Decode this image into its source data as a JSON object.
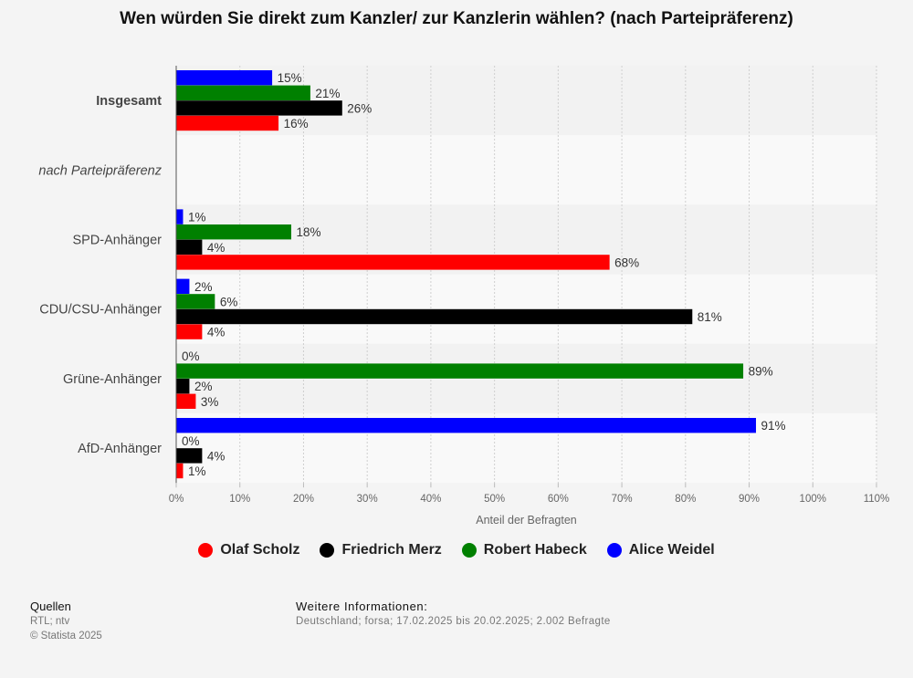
{
  "chart_data": {
    "type": "bar",
    "orientation": "horizontal",
    "title": "Wen würden Sie direkt zum Kanzler/ zur Kanzlerin wählen? (nach Parteipräferenz)",
    "xlabel": "Anteil der Befragten",
    "xlim": [
      0,
      110
    ],
    "xticks": [
      "0%",
      "10%",
      "20%",
      "30%",
      "40%",
      "50%",
      "60%",
      "70%",
      "80%",
      "90%",
      "100%",
      "110%"
    ],
    "grid": true,
    "legend_position": "bottom",
    "categories": [
      {
        "label": "Insgesamt",
        "style": "bold"
      },
      {
        "label": "nach Parteipräferenz",
        "style": "italic"
      },
      {
        "label": "SPD-Anhänger",
        "style": "normal"
      },
      {
        "label": "CDU/CSU-Anhänger",
        "style": "normal"
      },
      {
        "label": "Grüne-Anhänger",
        "style": "normal"
      },
      {
        "label": "AfD-Anhänger",
        "style": "normal"
      }
    ],
    "series": [
      {
        "name": "Alice Weidel",
        "color": "#0000ff",
        "values": [
          15,
          null,
          1,
          2,
          0,
          91
        ],
        "labels": [
          "15%",
          "",
          "1%",
          "2%",
          "0%",
          "91%"
        ]
      },
      {
        "name": "Robert Habeck",
        "color": "#008000",
        "values": [
          21,
          null,
          18,
          6,
          89,
          0
        ],
        "labels": [
          "21%",
          "",
          "18%",
          "6%",
          "89%",
          "0%"
        ]
      },
      {
        "name": "Friedrich Merz",
        "color": "#000000",
        "values": [
          26,
          null,
          4,
          81,
          2,
          4
        ],
        "labels": [
          "26%",
          "",
          "4%",
          "81%",
          "2%",
          "4%"
        ]
      },
      {
        "name": "Olaf Scholz",
        "color": "#ff0000",
        "values": [
          16,
          null,
          68,
          4,
          3,
          1
        ],
        "labels": [
          "16%",
          "",
          "68%",
          "4%",
          "3%",
          "1%"
        ]
      }
    ],
    "legend_order": [
      "Olaf Scholz",
      "Friedrich Merz",
      "Robert Habeck",
      "Alice Weidel"
    ]
  },
  "footer": {
    "sources_title": "Quellen",
    "sources": "RTL; ntv",
    "copyright": "© Statista 2025",
    "info_title": "Weitere Informationen:",
    "info": "Deutschland; forsa; 17.02.2025 bis 20.02.2025; 2.002 Befragte"
  }
}
